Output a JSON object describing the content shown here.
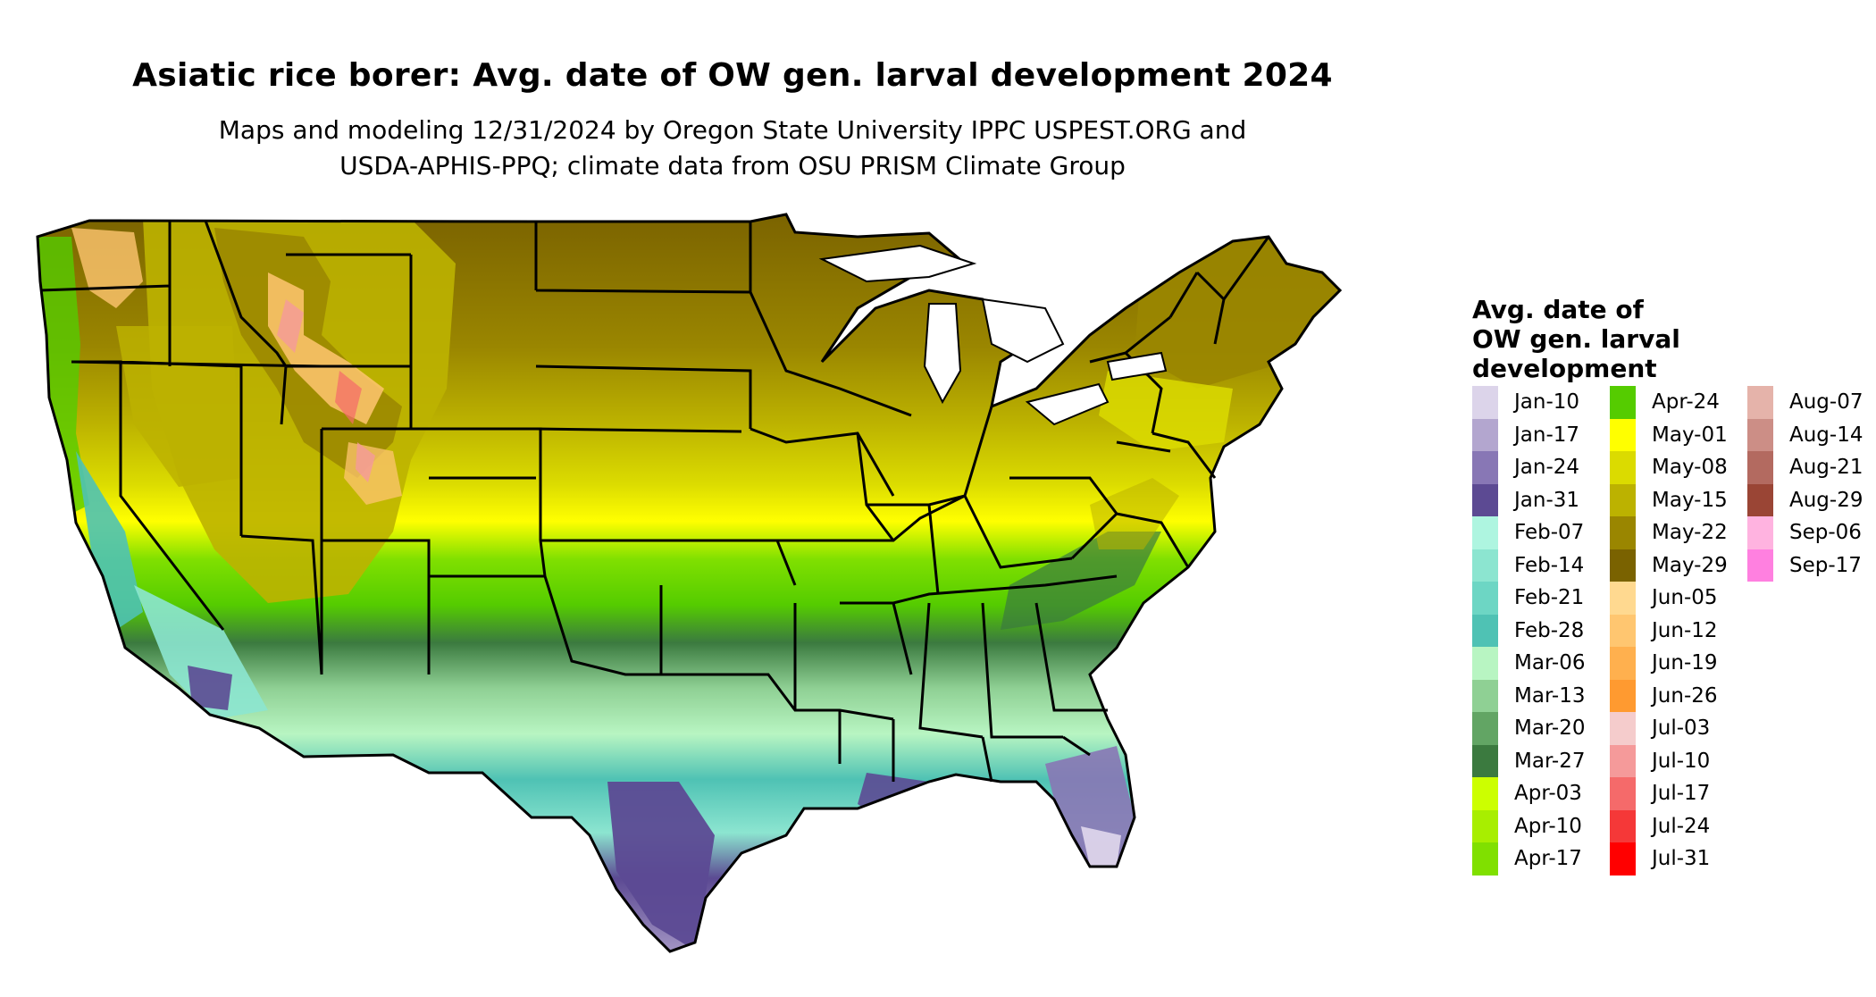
{
  "title": "Asiatic rice borer: Avg. date of OW gen. larval development 2024",
  "subtitle_line1": "Maps and modeling 12/31/2024 by Oregon State University IPPC USPEST.ORG and",
  "subtitle_line2": "USDA-APHIS-PPQ; climate data from OSU PRISM Climate Group",
  "legend": {
    "title_line1": "Avg. date of",
    "title_line2": "OW gen. larval",
    "title_line3": "development",
    "columns": [
      [
        {
          "label": "Jan-10",
          "color": "#dcd4ea"
        },
        {
          "label": "Jan-17",
          "color": "#b3a6cf"
        },
        {
          "label": "Jan-24",
          "color": "#8877b5"
        },
        {
          "label": "Jan-31",
          "color": "#5c4a93"
        },
        {
          "label": "Feb-07",
          "color": "#aef5e0"
        },
        {
          "label": "Feb-14",
          "color": "#8ce5d0"
        },
        {
          "label": "Feb-21",
          "color": "#6dd6c4"
        },
        {
          "label": "Feb-28",
          "color": "#4fc2b4"
        },
        {
          "label": "Mar-06",
          "color": "#b8f5c2"
        },
        {
          "label": "Mar-13",
          "color": "#8fd094"
        },
        {
          "label": "Mar-20",
          "color": "#62a564"
        },
        {
          "label": "Mar-27",
          "color": "#3b7a3f"
        },
        {
          "label": "Apr-03",
          "color": "#ccff00"
        },
        {
          "label": "Apr-10",
          "color": "#a8ee00"
        },
        {
          "label": "Apr-17",
          "color": "#80e000"
        }
      ],
      [
        {
          "label": "Apr-24",
          "color": "#55cc00"
        },
        {
          "label": "May-01",
          "color": "#ffff00"
        },
        {
          "label": "May-08",
          "color": "#dbdb00"
        },
        {
          "label": "May-15",
          "color": "#bcb200"
        },
        {
          "label": "May-22",
          "color": "#9a8600"
        },
        {
          "label": "May-29",
          "color": "#7a6200"
        },
        {
          "label": "Jun-05",
          "color": "#ffd990"
        },
        {
          "label": "Jun-12",
          "color": "#ffc670"
        },
        {
          "label": "Jun-19",
          "color": "#ffb04e"
        },
        {
          "label": "Jun-26",
          "color": "#ff9a30"
        },
        {
          "label": "Jul-03",
          "color": "#f5cccc"
        },
        {
          "label": "Jul-10",
          "color": "#f59a9a"
        },
        {
          "label": "Jul-17",
          "color": "#f56a6a"
        },
        {
          "label": "Jul-24",
          "color": "#f53838"
        },
        {
          "label": "Jul-31",
          "color": "#ff0000"
        }
      ],
      [
        {
          "label": "Aug-07",
          "color": "#e5b3aa"
        },
        {
          "label": "Aug-14",
          "color": "#cc8e86"
        },
        {
          "label": "Aug-21",
          "color": "#b36a60"
        },
        {
          "label": "Aug-29",
          "color": "#9a4535"
        },
        {
          "label": "Sep-06",
          "color": "#ffb3e0"
        },
        {
          "label": "Sep-17",
          "color": "#ff80e0"
        }
      ]
    ]
  }
}
